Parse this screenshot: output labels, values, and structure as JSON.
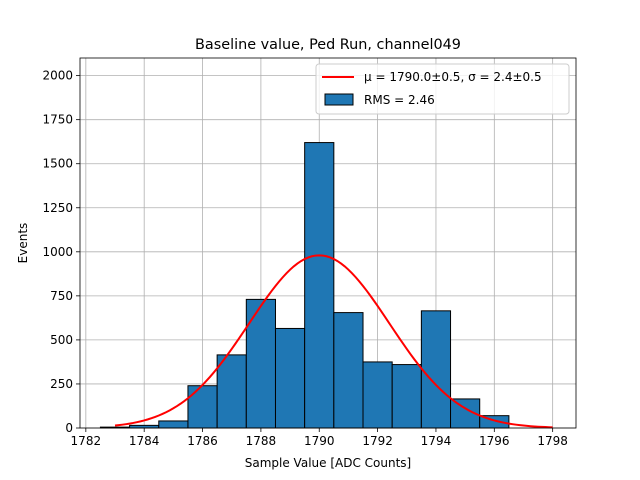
{
  "chart_data": {
    "type": "bar",
    "title": "Baseline value, Ped Run, channel049",
    "xlabel": "Sample Value [ADC Counts]",
    "ylabel": "Events",
    "xlim": [
      1781.8,
      1798.8
    ],
    "ylim": [
      0,
      2100
    ],
    "x_ticks": [
      "1782",
      "1784",
      "1786",
      "1788",
      "1790",
      "1792",
      "1794",
      "1796",
      "1798"
    ],
    "x_tick_values": [
      1782,
      1784,
      1786,
      1788,
      1790,
      1792,
      1794,
      1796,
      1798
    ],
    "y_ticks": [
      "0",
      "250",
      "500",
      "750",
      "1000",
      "1250",
      "1500",
      "1750",
      "2000"
    ],
    "y_tick_values": [
      0,
      250,
      500,
      750,
      1000,
      1250,
      1500,
      1750,
      2000
    ],
    "grid": true,
    "legend_position": "top-right",
    "histogram": {
      "name": "RMS = 2.46",
      "color": "#1f77b4",
      "bins": [
        {
          "x0": 1782.5,
          "x1": 1783.5,
          "count": 5
        },
        {
          "x0": 1783.5,
          "x1": 1784.5,
          "count": 15
        },
        {
          "x0": 1784.5,
          "x1": 1785.5,
          "count": 40
        },
        {
          "x0": 1785.5,
          "x1": 1786.5,
          "count": 240
        },
        {
          "x0": 1786.5,
          "x1": 1787.5,
          "count": 415
        },
        {
          "x0": 1787.5,
          "x1": 1788.5,
          "count": 730
        },
        {
          "x0": 1788.5,
          "x1": 1789.5,
          "count": 565
        },
        {
          "x0": 1789.5,
          "x1": 1790.5,
          "count": 1620
        },
        {
          "x0": 1790.5,
          "x1": 1791.5,
          "count": 655
        },
        {
          "x0": 1791.5,
          "x1": 1792.5,
          "count": 375
        },
        {
          "x0": 1792.5,
          "x1": 1793.5,
          "count": 360
        },
        {
          "x0": 1793.5,
          "x1": 1794.5,
          "count": 665
        },
        {
          "x0": 1794.5,
          "x1": 1795.5,
          "count": 165
        },
        {
          "x0": 1795.5,
          "x1": 1796.5,
          "count": 70
        }
      ]
    },
    "fit": {
      "type": "gaussian",
      "label": "μ = 1790.0±0.5, σ = 2.4±0.5",
      "color": "#ff0000",
      "mu": 1790.0,
      "sigma": 2.4,
      "amplitude": 980,
      "x_range": [
        1783,
        1798
      ]
    }
  }
}
